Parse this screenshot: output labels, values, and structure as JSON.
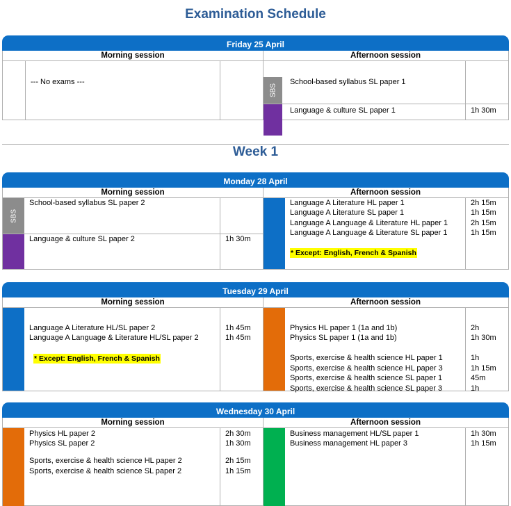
{
  "page_title": "Examination Schedule",
  "week_title": "Week 1",
  "session_labels": {
    "morning": "Morning session",
    "afternoon": "Afternoon session"
  },
  "sbs_label": "SBS",
  "colors": {
    "header_blue": "#0d6fc6",
    "title_blue": "#2d5c96",
    "sbs_grey": "#8c8c8c",
    "language_culture_purple": "#7030a0",
    "language_a_blue": "#0d6fc6",
    "science_orange": "#e36c09",
    "business_green": "#00b050",
    "highlight_yellow": "#ffff00"
  },
  "days": [
    {
      "heading": "Friday 25 April",
      "morning": {
        "note": "--- No exams ---"
      },
      "afternoon": {
        "sbs_exam": "School-based syllabus SL paper 1",
        "exam": "Language & culture SL paper 1",
        "duration": "1h 30m"
      }
    },
    {
      "heading": "Monday 28 April",
      "morning": {
        "sbs_exam": "School-based syllabus SL paper 2",
        "exam": "Language & culture SL paper 2",
        "duration": "1h 30m"
      },
      "afternoon": {
        "exams": [
          {
            "name": "Language A Literature HL paper 1",
            "duration": "2h 15m"
          },
          {
            "name": "Language A Literature SL paper 1",
            "duration": "1h 15m"
          },
          {
            "name": "Language A Language & Literature HL paper 1",
            "duration": "2h 15m"
          },
          {
            "name": "Language A Language & Literature SL paper 1",
            "duration": "1h 15m"
          }
        ],
        "except_note": "* Except: English, French & Spanish"
      }
    },
    {
      "heading": "Tuesday 29 April",
      "morning": {
        "exams": [
          {
            "name": "Language A Literature HL/SL paper 2",
            "duration": "1h 45m"
          },
          {
            "name": "Language A Language & Literature HL/SL paper 2",
            "duration": "1h 45m"
          }
        ],
        "except_note": "* Except: English, French & Spanish"
      },
      "afternoon": {
        "group1": [
          {
            "name": "Physics HL paper 1 (1a and 1b)",
            "duration": "2h"
          },
          {
            "name": "Physics SL paper 1 (1a and 1b)",
            "duration": "1h 30m"
          }
        ],
        "group2": [
          {
            "name": "Sports, exercise & health science HL paper 1",
            "duration": "1h"
          },
          {
            "name": "Sports, exercise & health science HL paper 3",
            "duration": "1h 15m"
          },
          {
            "name": "Sports, exercise & health science SL paper 1",
            "duration": "45m"
          },
          {
            "name": "Sports, exercise & health science SL paper 3",
            "duration": "1h"
          }
        ]
      }
    },
    {
      "heading": "Wednesday 30 April",
      "morning": {
        "group1": [
          {
            "name": "Physics HL paper 2",
            "duration": "2h 30m"
          },
          {
            "name": "Physics SL paper 2",
            "duration": "1h 30m"
          }
        ],
        "group2": [
          {
            "name": "Sports, exercise & health science HL paper 2",
            "duration": "2h 15m"
          },
          {
            "name": "Sports, exercise & health science SL paper 2",
            "duration": "1h 15m"
          }
        ]
      },
      "afternoon": {
        "exams": [
          {
            "name": "Business management HL/SL paper 1",
            "duration": "1h 30m"
          },
          {
            "name": "Business management HL paper 3",
            "duration": "1h 15m"
          }
        ]
      }
    }
  ]
}
